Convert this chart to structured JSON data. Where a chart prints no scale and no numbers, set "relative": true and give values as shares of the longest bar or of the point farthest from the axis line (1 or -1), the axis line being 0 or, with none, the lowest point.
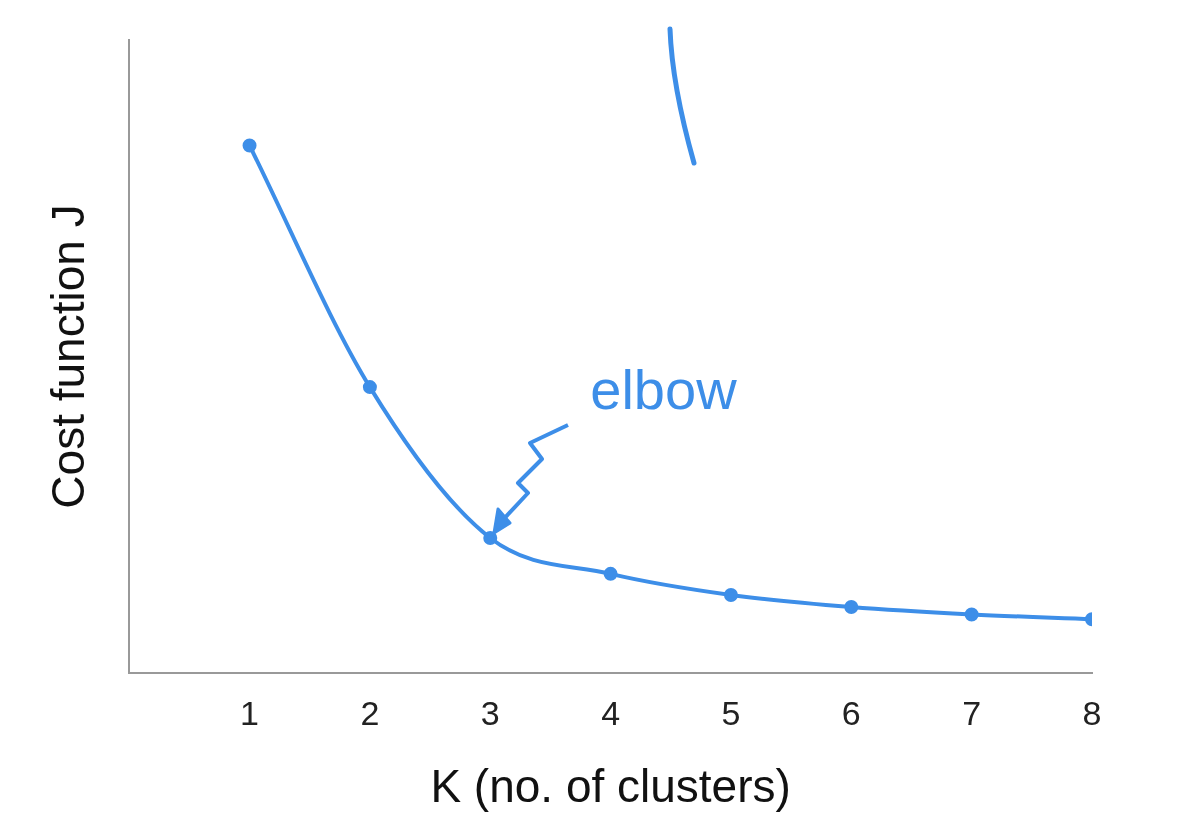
{
  "chart_data": {
    "type": "line",
    "relative": true,
    "x": [
      1,
      2,
      3,
      4,
      5,
      6,
      7,
      8
    ],
    "xlim": [
      0,
      8
    ],
    "xticks": [
      1,
      2,
      3,
      4,
      5,
      6,
      7,
      8
    ],
    "xlabel": "K (no. of clusters)",
    "ylabel": "Cost function J",
    "series": [
      {
        "color": "#3d8ee8",
        "values": [
          1,
          0.542,
          0.256,
          0.188,
          0.148,
          0.125,
          0.111,
          0.102
        ]
      }
    ],
    "annotations": [
      {
        "text": "elbow",
        "x": 3,
        "y": 0.256
      }
    ],
    "marker": "circle",
    "grid": false,
    "legend": false
  }
}
